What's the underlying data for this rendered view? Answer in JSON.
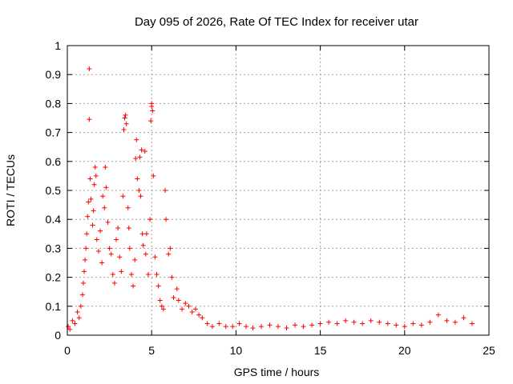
{
  "chart_data": {
    "type": "scatter",
    "title": "Day 095 of 2026, Rate Of TEC Index for receiver utar",
    "xlabel": "GPS time / hours",
    "ylabel": "ROTI / TECUs",
    "xlim": [
      0,
      25
    ],
    "ylim": [
      0,
      1
    ],
    "xticks": [
      0,
      5,
      10,
      15,
      20,
      25
    ],
    "yticks": [
      0,
      0.1,
      0.2,
      0.3,
      0.4,
      0.5,
      0.6,
      0.7,
      0.8,
      0.9,
      1
    ],
    "grid": true,
    "marker": "+",
    "color": "#ff0000",
    "series": [
      {
        "name": "ROTI",
        "points": [
          [
            0.05,
            0.03
          ],
          [
            0.15,
            0.02
          ],
          [
            0.3,
            0.05
          ],
          [
            0.45,
            0.04
          ],
          [
            0.6,
            0.08
          ],
          [
            0.7,
            0.06
          ],
          [
            0.8,
            0.1
          ],
          [
            0.9,
            0.14
          ],
          [
            0.95,
            0.18
          ],
          [
            1.0,
            0.22
          ],
          [
            1.05,
            0.26
          ],
          [
            1.1,
            0.3
          ],
          [
            1.15,
            0.35
          ],
          [
            1.2,
            0.41
          ],
          [
            1.25,
            0.46
          ],
          [
            1.3,
            0.92
          ],
          [
            1.3,
            0.745
          ],
          [
            1.35,
            0.54
          ],
          [
            1.4,
            0.47
          ],
          [
            1.5,
            0.38
          ],
          [
            1.55,
            0.43
          ],
          [
            1.6,
            0.52
          ],
          [
            1.65,
            0.58
          ],
          [
            1.7,
            0.55
          ],
          [
            1.75,
            0.33
          ],
          [
            1.85,
            0.29
          ],
          [
            1.95,
            0.36
          ],
          [
            2.05,
            0.25
          ],
          [
            2.1,
            0.48
          ],
          [
            2.2,
            0.44
          ],
          [
            2.25,
            0.58
          ],
          [
            2.3,
            0.51
          ],
          [
            2.4,
            0.39
          ],
          [
            2.5,
            0.3
          ],
          [
            2.6,
            0.28
          ],
          [
            2.7,
            0.21
          ],
          [
            2.8,
            0.18
          ],
          [
            2.9,
            0.33
          ],
          [
            3.0,
            0.37
          ],
          [
            3.1,
            0.27
          ],
          [
            3.2,
            0.22
          ],
          [
            3.3,
            0.48
          ],
          [
            3.35,
            0.71
          ],
          [
            3.4,
            0.75
          ],
          [
            3.45,
            0.76
          ],
          [
            3.5,
            0.73
          ],
          [
            3.6,
            0.44
          ],
          [
            3.65,
            0.37
          ],
          [
            3.7,
            0.3
          ],
          [
            3.8,
            0.21
          ],
          [
            3.9,
            0.17
          ],
          [
            4.0,
            0.26
          ],
          [
            4.05,
            0.61
          ],
          [
            4.1,
            0.675
          ],
          [
            4.15,
            0.54
          ],
          [
            4.25,
            0.5
          ],
          [
            4.3,
            0.615
          ],
          [
            4.35,
            0.48
          ],
          [
            4.4,
            0.64
          ],
          [
            4.45,
            0.35
          ],
          [
            4.5,
            0.31
          ],
          [
            4.6,
            0.635
          ],
          [
            4.65,
            0.28
          ],
          [
            4.7,
            0.35
          ],
          [
            4.8,
            0.21
          ],
          [
            4.9,
            0.4
          ],
          [
            4.95,
            0.74
          ],
          [
            5.0,
            0.79
          ],
          [
            5.0,
            0.8
          ],
          [
            5.05,
            0.775
          ],
          [
            5.1,
            0.55
          ],
          [
            5.2,
            0.27
          ],
          [
            5.3,
            0.21
          ],
          [
            5.4,
            0.17
          ],
          [
            5.5,
            0.12
          ],
          [
            5.6,
            0.1
          ],
          [
            5.7,
            0.09
          ],
          [
            5.8,
            0.5
          ],
          [
            5.85,
            0.4
          ],
          [
            6.0,
            0.28
          ],
          [
            6.1,
            0.3
          ],
          [
            6.2,
            0.2
          ],
          [
            6.3,
            0.13
          ],
          [
            6.5,
            0.16
          ],
          [
            6.6,
            0.12
          ],
          [
            6.8,
            0.09
          ],
          [
            7.0,
            0.11
          ],
          [
            7.2,
            0.1
          ],
          [
            7.4,
            0.08
          ],
          [
            7.6,
            0.09
          ],
          [
            7.8,
            0.07
          ],
          [
            8.0,
            0.06
          ],
          [
            8.3,
            0.04
          ],
          [
            8.6,
            0.03
          ],
          [
            9.0,
            0.04
          ],
          [
            9.4,
            0.03
          ],
          [
            9.8,
            0.03
          ],
          [
            10.2,
            0.04
          ],
          [
            10.6,
            0.03
          ],
          [
            11.0,
            0.025
          ],
          [
            11.5,
            0.03
          ],
          [
            12.0,
            0.035
          ],
          [
            12.5,
            0.03
          ],
          [
            13.0,
            0.025
          ],
          [
            13.5,
            0.035
          ],
          [
            14.0,
            0.03
          ],
          [
            14.5,
            0.035
          ],
          [
            15.0,
            0.04
          ],
          [
            15.5,
            0.045
          ],
          [
            16.0,
            0.04
          ],
          [
            16.5,
            0.05
          ],
          [
            17.0,
            0.045
          ],
          [
            17.5,
            0.04
          ],
          [
            18.0,
            0.05
          ],
          [
            18.5,
            0.045
          ],
          [
            19.0,
            0.04
          ],
          [
            19.5,
            0.035
          ],
          [
            20.0,
            0.03
          ],
          [
            20.5,
            0.04
          ],
          [
            21.0,
            0.035
          ],
          [
            21.5,
            0.045
          ],
          [
            22.0,
            0.07
          ],
          [
            22.5,
            0.05
          ],
          [
            23.0,
            0.045
          ],
          [
            23.5,
            0.06
          ],
          [
            24.0,
            0.04
          ]
        ]
      }
    ]
  }
}
